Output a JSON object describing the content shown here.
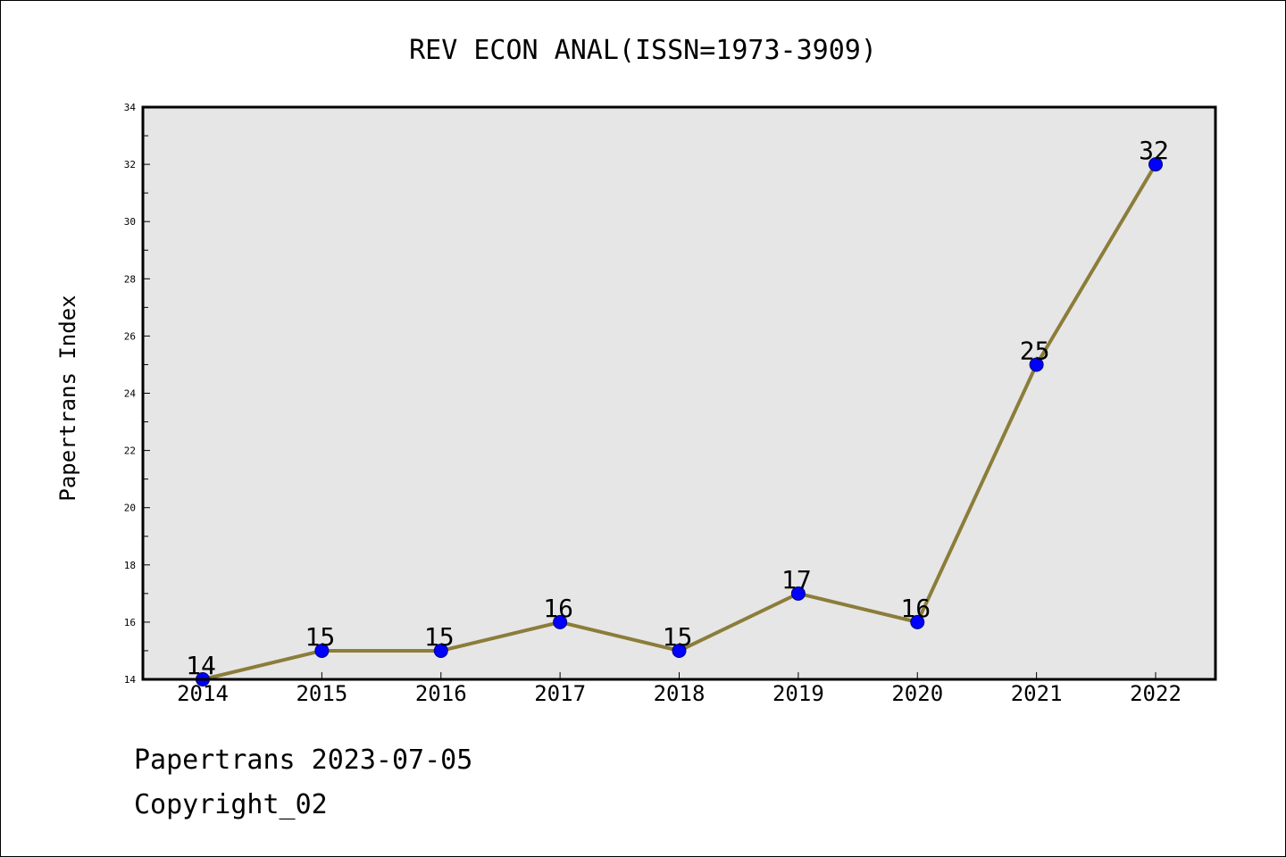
{
  "chart_data": {
    "type": "line",
    "title": "REV ECON ANAL(ISSN=1973-3909)",
    "ylabel": "Papertrans Index",
    "xlabel": "",
    "categories": [
      "2014",
      "2015",
      "2016",
      "2017",
      "2018",
      "2019",
      "2020",
      "2021",
      "2022"
    ],
    "values": [
      14,
      15,
      15,
      16,
      15,
      17,
      16,
      25,
      32
    ],
    "ylim": [
      14,
      34
    ],
    "yticks": [
      14,
      16,
      18,
      20,
      22,
      24,
      26,
      28,
      30,
      32,
      34
    ],
    "grid": false,
    "legend": "none",
    "colors": {
      "line": "#8b7d3a",
      "marker": "#0000ff",
      "marker_edge": "#000080",
      "plot_bg": "#e6e6e6"
    }
  },
  "footer": {
    "line1": "Papertrans 2023-07-05",
    "line2": "Copyright_02"
  }
}
